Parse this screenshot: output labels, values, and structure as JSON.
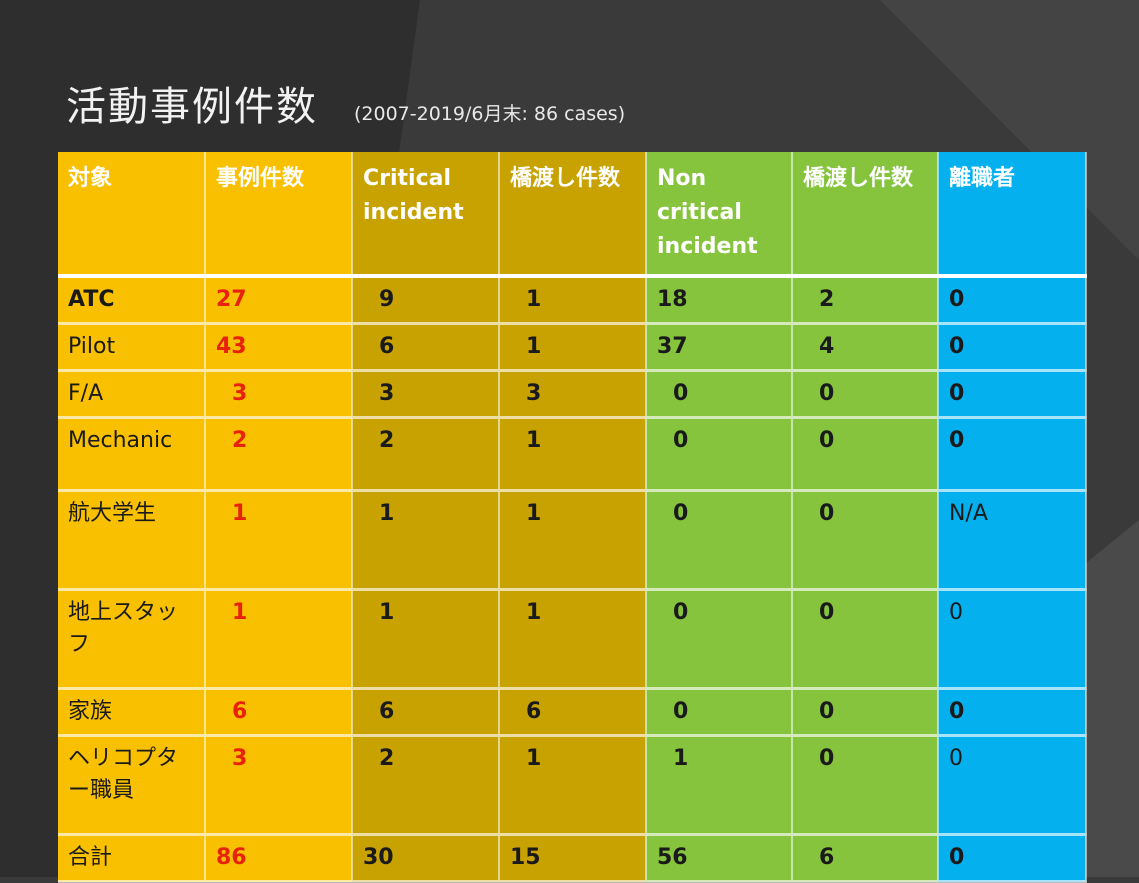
{
  "slide": {
    "title": "活動事例件数",
    "subtitle": "(2007-2019/6月末: 86 cases)"
  },
  "colors": {
    "background": "#3a3a3a",
    "orange": "#f9c000",
    "dark_gold": "#c8a200",
    "green": "#86c43e",
    "blue": "#04b0ee",
    "highlight_red": "#e8220a"
  },
  "table": {
    "headers": [
      "対象",
      "事例件数",
      "Critical incident",
      "橋渡し件数",
      "Non critical incident",
      "橋渡し件数",
      "離職者"
    ],
    "rows": [
      [
        "ATC",
        "27",
        "9",
        "1",
        "18",
        "2",
        "0"
      ],
      [
        "Pilot",
        "43",
        "6",
        "1",
        "37",
        "4",
        "0"
      ],
      [
        "F/A",
        "3",
        "3",
        "3",
        "0",
        "0",
        "0"
      ],
      [
        "Mechanic",
        "2",
        "2",
        "1",
        "0",
        "0",
        "0"
      ],
      [
        "航大学生",
        "1",
        "1",
        "1",
        "0",
        "0",
        "N/A"
      ],
      [
        "地上スタッフ",
        "1",
        "1",
        "1",
        "0",
        "0",
        "0"
      ],
      [
        "家族",
        "6",
        "6",
        "6",
        "0",
        "0",
        "0"
      ],
      [
        "ヘリコプター職員",
        "3",
        "2",
        "1",
        "1",
        "0",
        "0"
      ],
      [
        "合計",
        "86",
        "30",
        "15",
        "56",
        "6",
        "0"
      ]
    ]
  }
}
